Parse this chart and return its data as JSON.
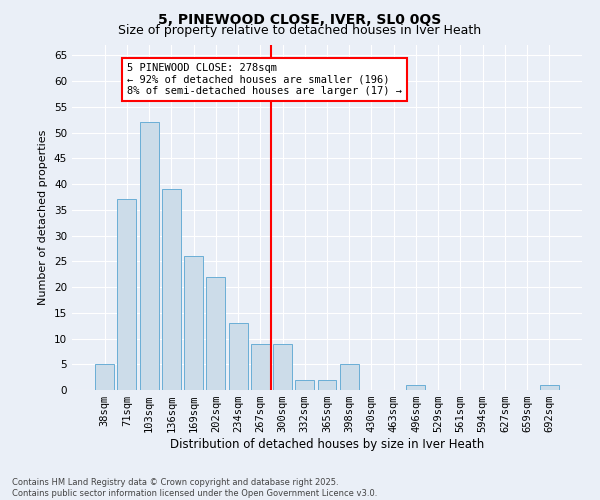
{
  "title": "5, PINEWOOD CLOSE, IVER, SL0 0QS",
  "subtitle": "Size of property relative to detached houses in Iver Heath",
  "xlabel": "Distribution of detached houses by size in Iver Heath",
  "ylabel": "Number of detached properties",
  "categories": [
    "38sqm",
    "71sqm",
    "103sqm",
    "136sqm",
    "169sqm",
    "202sqm",
    "234sqm",
    "267sqm",
    "300sqm",
    "332sqm",
    "365sqm",
    "398sqm",
    "430sqm",
    "463sqm",
    "496sqm",
    "529sqm",
    "561sqm",
    "594sqm",
    "627sqm",
    "659sqm",
    "692sqm"
  ],
  "values": [
    5,
    37,
    52,
    39,
    26,
    22,
    13,
    9,
    9,
    2,
    2,
    5,
    0,
    0,
    1,
    0,
    0,
    0,
    0,
    0,
    1
  ],
  "bar_color": "#ccdce9",
  "bar_edge_color": "#6aaed6",
  "background_color": "#eaeff7",
  "grid_color": "#ffffff",
  "vline_index": 7,
  "vline_color": "red",
  "annotation_text": "5 PINEWOOD CLOSE: 278sqm\n← 92% of detached houses are smaller (196)\n8% of semi-detached houses are larger (17) →",
  "ylim": [
    0,
    67
  ],
  "yticks": [
    0,
    5,
    10,
    15,
    20,
    25,
    30,
    35,
    40,
    45,
    50,
    55,
    60,
    65
  ],
  "footer": "Contains HM Land Registry data © Crown copyright and database right 2025.\nContains public sector information licensed under the Open Government Licence v3.0.",
  "title_fontsize": 10,
  "subtitle_fontsize": 9,
  "xlabel_fontsize": 8.5,
  "ylabel_fontsize": 8,
  "tick_fontsize": 7.5,
  "annotation_fontsize": 7.5,
  "footer_fontsize": 6
}
